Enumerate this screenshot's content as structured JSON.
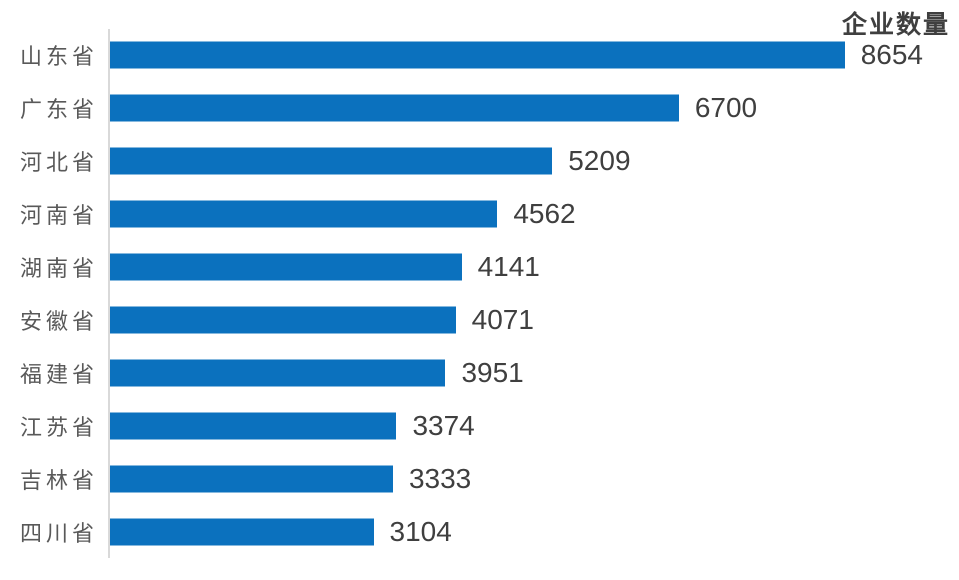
{
  "page": {
    "background": "#FFFFFF"
  },
  "chart_data": {
    "type": "bar",
    "orientation": "horizontal",
    "title": "企业数量",
    "categories": [
      "山东省",
      "广东省",
      "河北省",
      "河南省",
      "湖南省",
      "安徽省",
      "福建省",
      "江苏省",
      "吉林省",
      "四川省"
    ],
    "values": [
      8654,
      6700,
      5209,
      4562,
      4141,
      4071,
      3951,
      3374,
      3333,
      3104
    ],
    "xlabel": "",
    "ylabel": "",
    "xlim": [
      0,
      10000
    ],
    "gridlines": false,
    "legend": false,
    "value_labels": true,
    "title_position": "top-right",
    "colors": {
      "bar": "#0B71BE",
      "axis_line": "#D9D9D9",
      "title_text": "#3F3F3F",
      "value_text": "#3F3F3F",
      "category_text": "#595959"
    }
  }
}
